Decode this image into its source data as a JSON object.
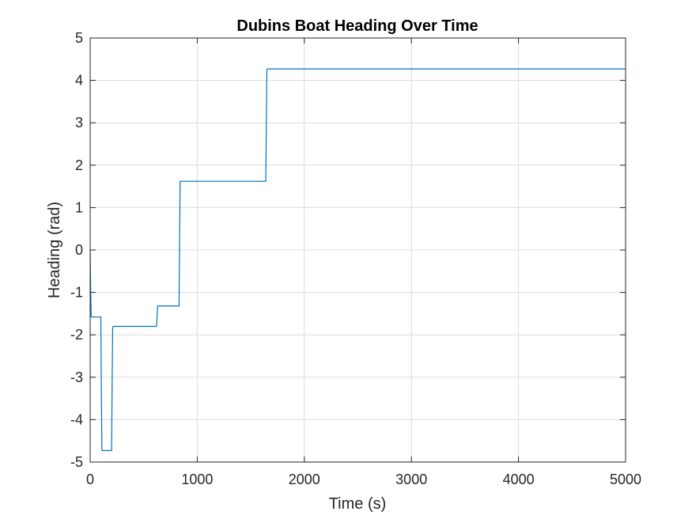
{
  "chart_data": {
    "type": "line",
    "title": "Dubins Boat Heading Over Time",
    "xlabel": "Time (s)",
    "ylabel": "Heading (rad)",
    "xlim": [
      0,
      5000
    ],
    "ylim": [
      -5,
      5
    ],
    "xticks": [
      0,
      1000,
      2000,
      3000,
      4000,
      5000
    ],
    "xtick_labels": [
      "0",
      "1000",
      "2000",
      "3000",
      "4000",
      "5000"
    ],
    "yticks": [
      -5,
      -4,
      -3,
      -2,
      -1,
      0,
      1,
      2,
      3,
      4,
      5
    ],
    "ytick_labels": [
      "-5",
      "-4",
      "-3",
      "-2",
      "-1",
      "0",
      "1",
      "2",
      "3",
      "4",
      "5"
    ],
    "grid": true,
    "series": [
      {
        "name": "Heading",
        "color": "#0072BD",
        "x": [
          0,
          5,
          10,
          100,
          105,
          110,
          200,
          210,
          215,
          620,
          630,
          635,
          830,
          840,
          845,
          1640,
          1650,
          1655,
          5000
        ],
        "y": [
          0,
          -1.0,
          -1.58,
          -1.58,
          -3.5,
          -4.73,
          -4.73,
          -1.85,
          -1.8,
          -1.8,
          -1.32,
          -1.32,
          -1.32,
          1.62,
          1.62,
          1.62,
          4.26,
          4.27,
          4.27
        ]
      }
    ]
  }
}
